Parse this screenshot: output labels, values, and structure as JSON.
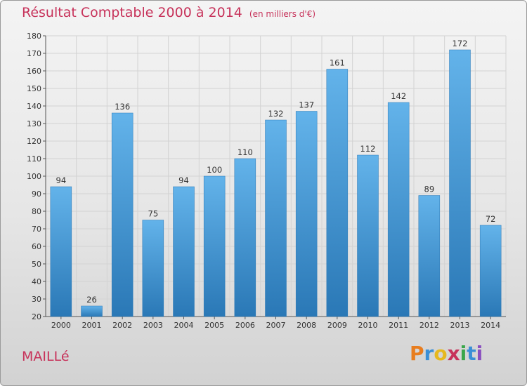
{
  "title": {
    "main": "Résultat Comptable 2000 à 2014",
    "unit": "(en milliers d'€)"
  },
  "commune": "MAILLé",
  "logo": {
    "letters": [
      "P",
      "r",
      "o",
      "x",
      "i",
      "t",
      "i"
    ],
    "colors": [
      "#e87d1e",
      "#3a8fd6",
      "#e6b81e",
      "#c7325a",
      "#3aa64a",
      "#3a8fd6",
      "#8a4fbf"
    ]
  },
  "colors": {
    "bar_top": "#63b3ea",
    "bar_bottom": "#2a78b6",
    "title": "#c7325a"
  },
  "chart_data": {
    "type": "bar",
    "title": "Résultat Comptable 2000 à 2014",
    "ylabel": "en milliers d'€",
    "categories": [
      "2000",
      "2001",
      "2002",
      "2003",
      "2004",
      "2005",
      "2006",
      "2007",
      "2008",
      "2009",
      "2010",
      "2011",
      "2012",
      "2013",
      "2014"
    ],
    "values": [
      94,
      26,
      136,
      75,
      94,
      100,
      110,
      132,
      137,
      161,
      112,
      142,
      89,
      172,
      72
    ],
    "ylim": [
      20,
      180
    ],
    "yticks": [
      20,
      30,
      40,
      50,
      60,
      70,
      80,
      90,
      100,
      110,
      120,
      130,
      140,
      150,
      160,
      170,
      180
    ],
    "grid": true
  }
}
